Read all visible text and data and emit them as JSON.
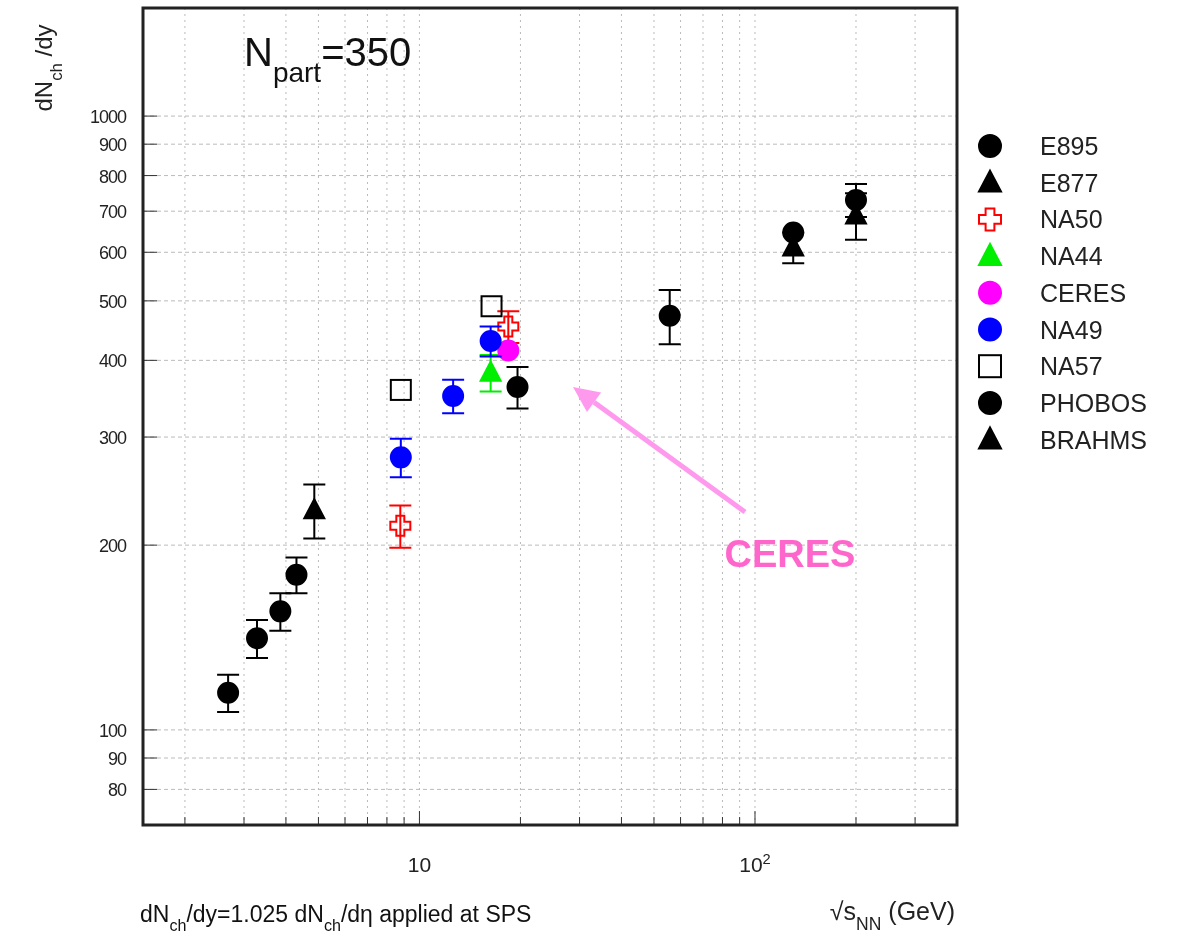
{
  "chart_data": {
    "type": "scatter",
    "annotations": [
      "N$_{part}$=350",
      "CERES",
      "dN$_{ch}$/dy=1.025 dN$_{ch}$/dη applied at SPS"
    ],
    "ylabel": "dN$_{ch}$ /dy",
    "xlabel": "√s$_{NN}$ (GeV)",
    "log": "xy",
    "grid": true,
    "legend": "right",
    "xlim": [
      1.5,
      400
    ],
    "ylim": [
      70,
      1500
    ],
    "xticks": [
      {
        "value": 2,
        "label": null
      },
      {
        "value": 3,
        "label": null
      },
      {
        "value": 4,
        "label": null
      },
      {
        "value": 5,
        "label": null
      },
      {
        "value": 6,
        "label": null
      },
      {
        "value": 7,
        "label": null
      },
      {
        "value": 8,
        "label": null
      },
      {
        "value": 9,
        "label": null
      },
      10,
      {
        "value": 20,
        "label": null
      },
      {
        "value": 30,
        "label": null
      },
      {
        "value": 40,
        "label": null
      },
      {
        "value": 50,
        "label": null
      },
      {
        "value": 60,
        "label": null
      },
      {
        "value": 70,
        "label": null
      },
      {
        "value": 80,
        "label": null
      },
      {
        "value": 90,
        "label": null
      },
      {
        "value": 100,
        "label": "10$^{2}$"
      },
      {
        "value": 200,
        "label": null
      },
      {
        "value": 300,
        "label": null
      },
      {
        "value": 400,
        "label": null
      }
    ],
    "yticks": [
      80,
      90,
      100,
      200,
      300,
      400,
      500,
      600,
      700,
      800,
      900,
      1000
    ],
    "series": [
      {
        "name": "E895",
        "color": "#000000",
        "marker": "circle",
        "x": [
          2.69,
          3.28,
          3.85,
          4.3
        ],
        "values": [
          115,
          141,
          156,
          179
        ],
        "errors": [
          8,
          10,
          11,
          12
        ]
      },
      {
        "name": "E877",
        "color": "#000000",
        "marker": "triangle",
        "x": [
          4.86
        ],
        "values": [
          228
        ],
        "errors": [
          23
        ]
      },
      {
        "name": "NA50",
        "color": "#ff0000",
        "marker": "cross",
        "x": [
          8.77,
          18.4
        ],
        "values": [
          215,
          454
        ],
        "errors": [
          17,
          27
        ]
      },
      {
        "name": "NA44",
        "color": "#00ee00",
        "marker": "triangle",
        "x": [
          16.3
        ],
        "values": [
          382
        ],
        "errors": [
          26
        ]
      },
      {
        "name": "CERES",
        "color": "#ff00ff",
        "marker": "circle",
        "x": [
          18.4
        ],
        "values": [
          415
        ],
        "errors": [
          null
        ]
      },
      {
        "name": "NA49",
        "color": "#0000ff",
        "marker": "circle",
        "x": [
          8.8,
          12.6,
          16.3
        ],
        "values": [
          278,
          350,
          430
        ],
        "errors": [
          20,
          22,
          24
        ]
      },
      {
        "name": "NA57",
        "color": "#000000",
        "marker": "square",
        "x": [
          8.8,
          16.4
        ],
        "values": [
          358,
          490
        ],
        "errors": [
          null,
          null
        ]
      },
      {
        "name": "PHOBOS",
        "color": "#000000",
        "marker": "circle",
        "x": [
          19.6,
          55.7,
          130,
          200
        ],
        "values": [
          362,
          473,
          646,
          730
        ],
        "errors": [
          28,
          48,
          null,
          45
        ]
      },
      {
        "name": "BRAHMS",
        "color": "#000000",
        "marker": "triangle",
        "x": [
          130,
          200
        ],
        "values": [
          611,
          689
        ],
        "errors": [
          35,
          60
        ]
      }
    ]
  }
}
